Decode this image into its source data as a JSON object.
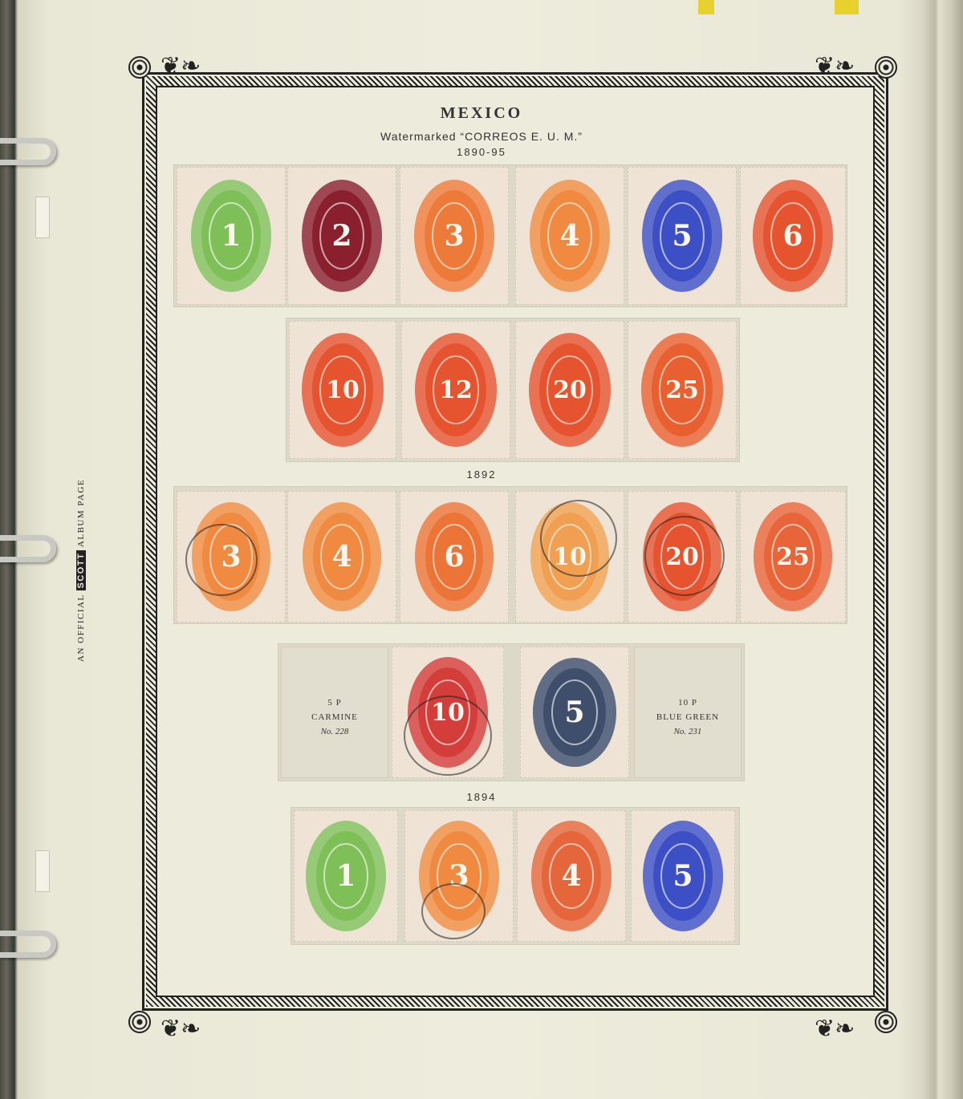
{
  "page": {
    "title": "MEXICO",
    "subtitle": "Watermarked “CORREOS E. U. M.”",
    "side_label": {
      "prefix": "AN OFFICIAL",
      "brand": "SCOTT",
      "suffix": "ALBUM PAGE"
    }
  },
  "sections": [
    {
      "year": "1890-95"
    },
    {
      "year": "1892"
    },
    {
      "year": "1894"
    }
  ],
  "stamps": {
    "r1": [
      "1",
      "2",
      "3",
      "4",
      "5",
      "6"
    ],
    "r2": [
      "10",
      "12",
      "20",
      "25"
    ],
    "r3": [
      "3",
      "4",
      "6",
      "10",
      "20",
      "25"
    ],
    "r4": [
      "10",
      "5"
    ],
    "r5": [
      "1",
      "3",
      "4",
      "5"
    ]
  },
  "empty_spaces": [
    {
      "value": "5 P",
      "color": "CARMINE",
      "number": "No. 228"
    },
    {
      "value": "10 P",
      "color": "BLUE GREEN",
      "number": "No. 231"
    }
  ],
  "colors": {
    "green": "#7fbf58",
    "maroon": "#8a1f2e",
    "orange": "#ee7a3a",
    "vermilion": "#e5532f",
    "blue": "#3d4fc4",
    "slate": "#3f4e6a",
    "carmine": "#d43e3a"
  }
}
